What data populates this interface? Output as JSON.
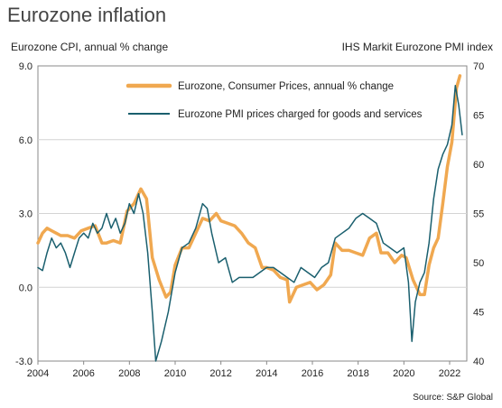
{
  "chart_data": {
    "type": "line",
    "title": "Eurozone inflation",
    "ylabel_left": "Eurozone CPI, annual % change",
    "ylabel_right": "IHS Markit Eurozone PMI index",
    "source": "Source: S&P Global",
    "xlim": [
      2004,
      2022.75
    ],
    "ylim_left": [
      -3.0,
      9.0
    ],
    "ylim_right": [
      40,
      70
    ],
    "x_ticks": [
      "2004",
      "2006",
      "2008",
      "2010",
      "2012",
      "2014",
      "2016",
      "2018",
      "2020",
      "2022"
    ],
    "x_tick_values": [
      2004,
      2006,
      2008,
      2010,
      2012,
      2014,
      2016,
      2018,
      2020,
      2022
    ],
    "y_left_ticks": [
      "9.0",
      "6.0",
      "3.0",
      "0.0",
      "-3.0"
    ],
    "y_left_tick_values": [
      9,
      6,
      3,
      0,
      -3
    ],
    "y_right_ticks": [
      "70",
      "65",
      "60",
      "55",
      "50",
      "45",
      "40"
    ],
    "y_right_tick_values": [
      70,
      65,
      60,
      55,
      50,
      45,
      40
    ],
    "grid": "horizontal",
    "legend_position": "top-center",
    "series": [
      {
        "name": "Eurozone, Consumer Prices, annual % change",
        "axis": "left",
        "color": "#f0a850",
        "x": [
          2004.0,
          2004.2,
          2004.4,
          2004.6,
          2004.8,
          2005.0,
          2005.3,
          2005.6,
          2005.9,
          2006.2,
          2006.5,
          2006.8,
          2007.0,
          2007.3,
          2007.6,
          2007.9,
          2008.2,
          2008.5,
          2008.75,
          2009.0,
          2009.3,
          2009.6,
          2009.8,
          2010.0,
          2010.3,
          2010.6,
          2010.9,
          2011.2,
          2011.5,
          2011.8,
          2012.0,
          2012.3,
          2012.6,
          2012.9,
          2013.2,
          2013.5,
          2013.8,
          2014.0,
          2014.3,
          2014.6,
          2014.9,
          2015.0,
          2015.3,
          2015.6,
          2015.9,
          2016.2,
          2016.5,
          2016.8,
          2017.0,
          2017.3,
          2017.6,
          2017.9,
          2018.2,
          2018.5,
          2018.8,
          2019.0,
          2019.3,
          2019.6,
          2019.9,
          2020.1,
          2020.4,
          2020.7,
          2020.9,
          2021.1,
          2021.3,
          2021.5,
          2021.7,
          2021.9,
          2022.1,
          2022.3,
          2022.45
        ],
        "values": [
          1.8,
          2.2,
          2.4,
          2.3,
          2.2,
          2.1,
          2.1,
          2.0,
          2.3,
          2.4,
          2.5,
          1.8,
          1.8,
          1.9,
          1.8,
          3.1,
          3.4,
          4.0,
          3.6,
          1.2,
          0.3,
          -0.4,
          -0.2,
          0.9,
          1.6,
          1.6,
          2.2,
          2.8,
          2.7,
          3.0,
          2.7,
          2.6,
          2.5,
          2.2,
          1.8,
          1.6,
          0.8,
          0.8,
          0.7,
          0.4,
          0.3,
          -0.6,
          0.0,
          0.1,
          0.2,
          -0.1,
          0.1,
          0.5,
          1.8,
          1.5,
          1.5,
          1.4,
          1.3,
          2.0,
          2.2,
          1.4,
          1.4,
          1.0,
          1.3,
          1.2,
          0.3,
          -0.3,
          -0.3,
          0.9,
          1.6,
          2.0,
          3.4,
          4.9,
          5.9,
          8.1,
          8.6
        ]
      },
      {
        "name": "Eurozone PMI prices charged for goods and services",
        "axis": "right",
        "color": "#1a5f6e",
        "x": [
          2004.0,
          2004.2,
          2004.4,
          2004.6,
          2004.8,
          2005.0,
          2005.2,
          2005.4,
          2005.6,
          2005.8,
          2006.0,
          2006.2,
          2006.4,
          2006.6,
          2006.8,
          2007.0,
          2007.2,
          2007.4,
          2007.6,
          2007.8,
          2008.0,
          2008.2,
          2008.4,
          2008.6,
          2008.8,
          2009.0,
          2009.15,
          2009.4,
          2009.7,
          2010.0,
          2010.3,
          2010.6,
          2010.9,
          2011.2,
          2011.4,
          2011.6,
          2011.9,
          2012.2,
          2012.5,
          2012.8,
          2013.1,
          2013.4,
          2013.7,
          2014.0,
          2014.3,
          2014.6,
          2014.9,
          2015.2,
          2015.5,
          2015.8,
          2016.1,
          2016.4,
          2016.7,
          2017.0,
          2017.3,
          2017.6,
          2017.9,
          2018.2,
          2018.5,
          2018.8,
          2019.1,
          2019.4,
          2019.7,
          2020.0,
          2020.2,
          2020.35,
          2020.5,
          2020.7,
          2020.9,
          2021.1,
          2021.3,
          2021.5,
          2021.7,
          2021.9,
          2022.1,
          2022.25,
          2022.4,
          2022.55
        ],
        "values": [
          49.5,
          49.2,
          51.0,
          52.5,
          51.5,
          52.0,
          51.0,
          49.5,
          51.0,
          52.5,
          53.0,
          52.5,
          54.0,
          53.0,
          53.5,
          55.0,
          53.5,
          54.5,
          53.0,
          54.0,
          56.0,
          55.0,
          57.0,
          55.0,
          51.0,
          45.0,
          40.0,
          42.0,
          45.0,
          49.0,
          51.5,
          52.0,
          53.5,
          56.0,
          55.5,
          53.0,
          50.0,
          50.5,
          48.0,
          48.5,
          48.5,
          48.5,
          49.0,
          49.5,
          49.5,
          49.0,
          48.5,
          48.0,
          49.5,
          49.0,
          48.5,
          49.5,
          50.0,
          52.5,
          53.0,
          53.5,
          54.5,
          55.0,
          54.5,
          54.0,
          52.0,
          51.5,
          51.0,
          51.5,
          48.0,
          42.0,
          46.0,
          48.0,
          49.0,
          52.0,
          56.5,
          59.5,
          61.0,
          62.0,
          64.0,
          68.0,
          66.0,
          63.0
        ]
      }
    ]
  }
}
